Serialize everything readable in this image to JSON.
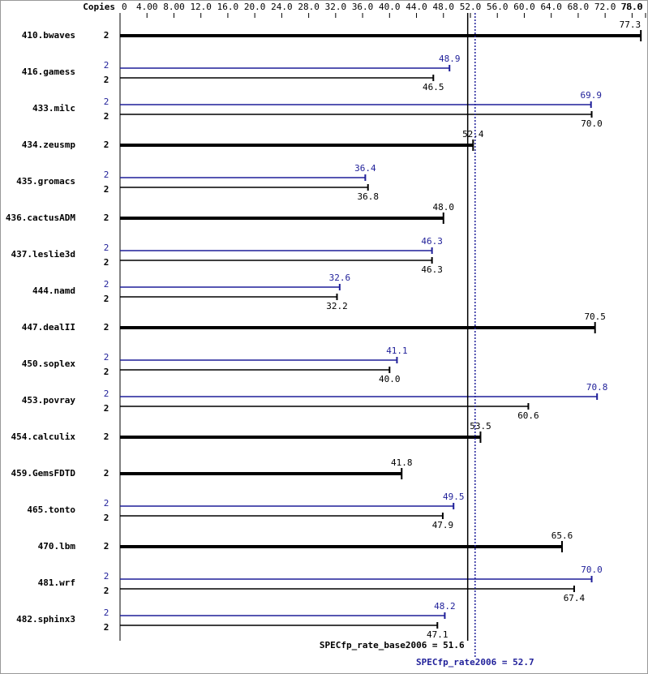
{
  "chart_data": {
    "type": "bar",
    "orientation": "horizontal",
    "axis_label": "Copies",
    "categories": [
      "410.bwaves",
      "416.gamess",
      "433.milc",
      "434.zeusmp",
      "435.gromacs",
      "436.cactusADM",
      "437.leslie3d",
      "444.namd",
      "447.dealII",
      "450.soplex",
      "453.povray",
      "454.calculix",
      "459.GemsFDTD",
      "465.tonto",
      "470.lbm",
      "481.wrf",
      "482.sphinx3"
    ],
    "series": [
      {
        "color": "#1f1f99",
        "copies": [
          null,
          2,
          2,
          null,
          2,
          null,
          2,
          2,
          null,
          2,
          2,
          null,
          null,
          2,
          null,
          2,
          2
        ],
        "values": [
          null,
          48.9,
          69.9,
          null,
          36.4,
          null,
          46.3,
          32.6,
          null,
          41.1,
          70.8,
          null,
          null,
          49.5,
          null,
          70.0,
          48.2
        ],
        "value_labels": [
          null,
          "48.9",
          "69.9",
          null,
          "36.4",
          null,
          "46.3",
          "32.6",
          null,
          "41.1",
          "70.8",
          null,
          null,
          "49.5",
          null,
          "70.0",
          "48.2"
        ]
      },
      {
        "color": "#000000",
        "copies": [
          2,
          2,
          2,
          2,
          2,
          2,
          2,
          2,
          2,
          2,
          2,
          2,
          2,
          2,
          2,
          2,
          2
        ],
        "values": [
          77.3,
          46.5,
          70.0,
          52.4,
          36.8,
          48.0,
          46.3,
          32.2,
          70.5,
          40.0,
          60.6,
          53.5,
          41.8,
          47.9,
          65.6,
          67.4,
          47.1
        ],
        "value_labels": [
          "77.3",
          "46.5",
          "70.0",
          "52.4",
          "36.8",
          "48.0",
          "46.3",
          "32.2",
          "70.5",
          "40.0",
          "60.6",
          "53.5",
          "41.8",
          "47.9",
          "65.6",
          "67.4",
          "47.1"
        ]
      }
    ],
    "xlim": [
      0,
      78
    ],
    "xticks": [
      0,
      {
        "value": 4,
        "label": "4.00"
      },
      {
        "value": 8,
        "label": "8.00"
      },
      {
        "value": 12,
        "label": "12.0"
      },
      {
        "value": 16,
        "label": "16.0"
      },
      {
        "value": 20,
        "label": "20.0"
      },
      {
        "value": 24,
        "label": "24.0"
      },
      {
        "value": 28,
        "label": "28.0"
      },
      {
        "value": 32,
        "label": "32.0"
      },
      {
        "value": 36,
        "label": "36.0"
      },
      {
        "value": 40,
        "label": "40.0"
      },
      {
        "value": 44,
        "label": "44.0"
      },
      {
        "value": 48,
        "label": "48.0"
      },
      {
        "value": 52,
        "label": "52.0"
      },
      {
        "value": 56,
        "label": "56.0"
      },
      {
        "value": 60,
        "label": "60.0"
      },
      {
        "value": 64,
        "label": "64.0"
      },
      {
        "value": 68,
        "label": "68.0"
      },
      {
        "value": 72,
        "label": "72.0"
      },
      {
        "value": 76,
        "label": "76.0"
      },
      {
        "value": 78,
        "label": "78.0"
      }
    ],
    "reference_lines": [
      {
        "label": "SPECfp_rate_base2006 = 51.6",
        "value": 51.6,
        "color": "#000000",
        "style": "solid"
      },
      {
        "label": "SPECfp_rate2006 = 52.7",
        "value": 52.7,
        "color": "#1f1f99",
        "style": "dotted"
      }
    ]
  }
}
